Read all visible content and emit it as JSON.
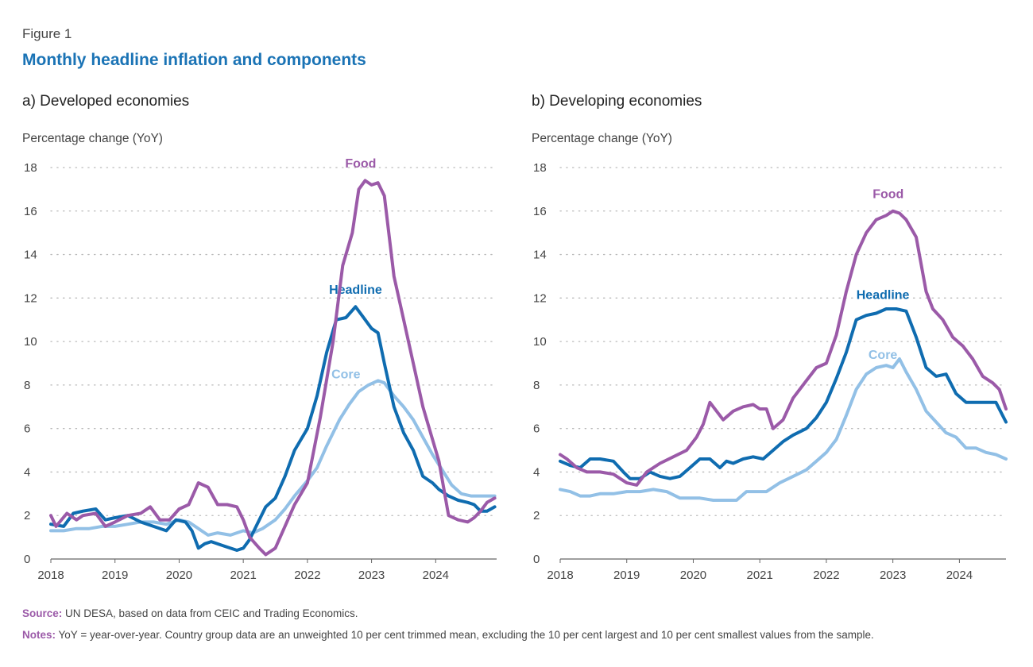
{
  "figure": {
    "label": "Figure 1",
    "title": "Monthly headline inflation and components",
    "source_label": "Source:",
    "source_text": "UN DESA, based on data from CEIC and Trading Economics.",
    "notes_label": "Notes:",
    "notes_text": "YoY = year-over-year. Country group data are an unweighted 10 per cent trimmed mean, excluding the 10 per cent largest and 10 per cent smallest values from the sample."
  },
  "colors": {
    "food": "#9b5aa8",
    "headline": "#0f6cb0",
    "core": "#92c0e6",
    "grid": "#b9b9b9",
    "title": "#1a73b5"
  },
  "chart_data": [
    {
      "type": "line",
      "panel_title": "a) Developed economies",
      "ylabel": "Percentage change (YoY)",
      "ylim": [
        0,
        18
      ],
      "yticks": [
        0,
        2,
        4,
        6,
        8,
        10,
        12,
        14,
        16,
        18
      ],
      "xlim": [
        2018,
        2024.95
      ],
      "xticks": [
        2018,
        2019,
        2020,
        2021,
        2022,
        2023,
        2024
      ],
      "grid": "horizontal dotted",
      "series": [
        {
          "name": "Food",
          "key": "food",
          "label_at": [
            2022.83,
            18.0
          ],
          "x": [
            2018.0,
            2018.08,
            2018.25,
            2018.4,
            2018.5,
            2018.7,
            2018.85,
            2019.0,
            2019.2,
            2019.4,
            2019.55,
            2019.7,
            2019.85,
            2020.0,
            2020.15,
            2020.3,
            2020.45,
            2020.6,
            2020.75,
            2020.9,
            2021.0,
            2021.1,
            2021.25,
            2021.35,
            2021.5,
            2021.65,
            2021.8,
            2022.0,
            2022.2,
            2022.4,
            2022.55,
            2022.7,
            2022.8,
            2022.9,
            2023.0,
            2023.1,
            2023.2,
            2023.35,
            2023.5,
            2023.65,
            2023.8,
            2023.95,
            2024.05,
            2024.2,
            2024.35,
            2024.5,
            2024.6,
            2024.7,
            2024.8,
            2024.92
          ],
          "y": [
            2.0,
            1.5,
            2.1,
            1.8,
            2.0,
            2.1,
            1.5,
            1.7,
            2.0,
            2.1,
            2.4,
            1.8,
            1.8,
            2.3,
            2.5,
            3.5,
            3.3,
            2.5,
            2.5,
            2.4,
            1.8,
            1.0,
            0.5,
            0.2,
            0.5,
            1.5,
            2.5,
            3.5,
            6.5,
            10.0,
            13.5,
            15.0,
            17.0,
            17.4,
            17.2,
            17.3,
            16.7,
            13.0,
            11.0,
            9.0,
            7.0,
            5.5,
            4.5,
            2.0,
            1.8,
            1.7,
            1.9,
            2.2,
            2.6,
            2.8
          ]
        },
        {
          "name": "Headline",
          "key": "headline",
          "label_at": [
            2022.75,
            12.2
          ],
          "x": [
            2018.0,
            2018.2,
            2018.35,
            2018.5,
            2018.7,
            2018.85,
            2019.0,
            2019.2,
            2019.4,
            2019.6,
            2019.8,
            2019.95,
            2020.1,
            2020.2,
            2020.3,
            2020.4,
            2020.5,
            2020.7,
            2020.9,
            2021.0,
            2021.1,
            2021.2,
            2021.35,
            2021.5,
            2021.65,
            2021.8,
            2022.0,
            2022.15,
            2022.3,
            2022.45,
            2022.6,
            2022.75,
            2022.85,
            2023.0,
            2023.1,
            2023.2,
            2023.35,
            2023.5,
            2023.65,
            2023.8,
            2023.95,
            2024.05,
            2024.2,
            2024.35,
            2024.5,
            2024.6,
            2024.7,
            2024.8,
            2024.92
          ],
          "y": [
            1.6,
            1.5,
            2.1,
            2.2,
            2.3,
            1.8,
            1.9,
            2.0,
            1.7,
            1.5,
            1.3,
            1.8,
            1.7,
            1.3,
            0.5,
            0.7,
            0.8,
            0.6,
            0.4,
            0.5,
            0.9,
            1.5,
            2.4,
            2.8,
            3.8,
            5.0,
            6.0,
            7.5,
            9.5,
            11.0,
            11.1,
            11.6,
            11.2,
            10.6,
            10.4,
            9.0,
            7.0,
            5.8,
            5.0,
            3.8,
            3.5,
            3.2,
            2.9,
            2.7,
            2.6,
            2.5,
            2.2,
            2.2,
            2.4
          ]
        },
        {
          "name": "Core",
          "key": "core",
          "label_at": [
            2022.6,
            8.3
          ],
          "x": [
            2018.0,
            2018.2,
            2018.4,
            2018.6,
            2018.8,
            2019.0,
            2019.2,
            2019.4,
            2019.6,
            2019.8,
            2020.0,
            2020.15,
            2020.3,
            2020.45,
            2020.6,
            2020.8,
            2021.0,
            2021.15,
            2021.3,
            2021.5,
            2021.65,
            2021.8,
            2022.0,
            2022.15,
            2022.3,
            2022.5,
            2022.65,
            2022.8,
            2022.95,
            2023.1,
            2023.2,
            2023.35,
            2023.5,
            2023.65,
            2023.8,
            2023.95,
            2024.1,
            2024.25,
            2024.4,
            2024.55,
            2024.7,
            2024.92
          ],
          "y": [
            1.3,
            1.3,
            1.4,
            1.4,
            1.5,
            1.5,
            1.6,
            1.7,
            1.7,
            1.6,
            1.8,
            1.7,
            1.4,
            1.1,
            1.2,
            1.1,
            1.3,
            1.2,
            1.4,
            1.8,
            2.3,
            2.9,
            3.6,
            4.2,
            5.2,
            6.4,
            7.1,
            7.7,
            8.0,
            8.2,
            8.1,
            7.5,
            7.0,
            6.4,
            5.6,
            4.8,
            4.1,
            3.4,
            3.0,
            2.9,
            2.9,
            2.9
          ]
        }
      ]
    },
    {
      "type": "line",
      "panel_title": "b) Developing economies",
      "ylabel": "Percentage change (YoY)",
      "ylim": [
        0,
        18
      ],
      "yticks": [
        0,
        2,
        4,
        6,
        8,
        10,
        12,
        14,
        16,
        18
      ],
      "xlim": [
        2018,
        2024.7
      ],
      "xticks": [
        2018,
        2019,
        2020,
        2021,
        2022,
        2023,
        2024
      ],
      "grid": "horizontal dotted",
      "series": [
        {
          "name": "Food",
          "key": "food",
          "label_at": [
            2022.93,
            16.6
          ],
          "x": [
            2018.0,
            2018.1,
            2018.25,
            2018.4,
            2018.6,
            2018.8,
            2019.0,
            2019.15,
            2019.3,
            2019.5,
            2019.7,
            2019.9,
            2020.05,
            2020.15,
            2020.25,
            2020.35,
            2020.45,
            2020.6,
            2020.75,
            2020.9,
            2021.0,
            2021.1,
            2021.2,
            2021.35,
            2021.5,
            2021.7,
            2021.85,
            2022.0,
            2022.15,
            2022.3,
            2022.45,
            2022.6,
            2022.75,
            2022.9,
            2023.0,
            2023.1,
            2023.2,
            2023.35,
            2023.5,
            2023.6,
            2023.75,
            2023.9,
            2024.05,
            2024.2,
            2024.35,
            2024.5,
            2024.6,
            2024.7
          ],
          "y": [
            4.8,
            4.6,
            4.2,
            4.0,
            4.0,
            3.9,
            3.5,
            3.4,
            4.0,
            4.4,
            4.7,
            5.0,
            5.6,
            6.2,
            7.2,
            6.8,
            6.4,
            6.8,
            7.0,
            7.1,
            6.9,
            6.9,
            6.0,
            6.4,
            7.4,
            8.2,
            8.8,
            9.0,
            10.3,
            12.3,
            14.0,
            15.0,
            15.6,
            15.8,
            16.0,
            15.9,
            15.6,
            14.8,
            12.3,
            11.5,
            11.0,
            10.2,
            9.8,
            9.2,
            8.4,
            8.1,
            7.8,
            6.9
          ]
        },
        {
          "name": "Headline",
          "key": "headline",
          "label_at": [
            2022.85,
            11.95
          ],
          "x": [
            2018.0,
            2018.15,
            2018.3,
            2018.45,
            2018.6,
            2018.8,
            2018.95,
            2019.05,
            2019.2,
            2019.35,
            2019.5,
            2019.65,
            2019.8,
            2019.95,
            2020.1,
            2020.25,
            2020.4,
            2020.5,
            2020.6,
            2020.75,
            2020.9,
            2021.05,
            2021.2,
            2021.35,
            2021.5,
            2021.7,
            2021.85,
            2022.0,
            2022.15,
            2022.3,
            2022.45,
            2022.6,
            2022.75,
            2022.9,
            2023.05,
            2023.2,
            2023.35,
            2023.5,
            2023.65,
            2023.8,
            2023.95,
            2024.1,
            2024.25,
            2024.4,
            2024.55,
            2024.7
          ],
          "y": [
            4.5,
            4.3,
            4.2,
            4.6,
            4.6,
            4.5,
            4.0,
            3.7,
            3.7,
            4.0,
            3.8,
            3.7,
            3.8,
            4.2,
            4.6,
            4.6,
            4.2,
            4.5,
            4.4,
            4.6,
            4.7,
            4.6,
            5.0,
            5.4,
            5.7,
            6.0,
            6.5,
            7.2,
            8.3,
            9.5,
            11.0,
            11.2,
            11.3,
            11.5,
            11.5,
            11.4,
            10.2,
            8.8,
            8.4,
            8.5,
            7.6,
            7.2,
            7.2,
            7.2,
            7.2,
            6.3
          ]
        },
        {
          "name": "Core",
          "key": "core",
          "label_at": [
            2022.85,
            9.2
          ],
          "x": [
            2018.0,
            2018.15,
            2018.3,
            2018.45,
            2018.6,
            2018.8,
            2019.0,
            2019.2,
            2019.4,
            2019.6,
            2019.8,
            2019.95,
            2020.1,
            2020.3,
            2020.5,
            2020.65,
            2020.8,
            2020.95,
            2021.1,
            2021.3,
            2021.5,
            2021.7,
            2021.85,
            2022.0,
            2022.15,
            2022.3,
            2022.45,
            2022.6,
            2022.75,
            2022.9,
            2023.0,
            2023.1,
            2023.2,
            2023.35,
            2023.5,
            2023.65,
            2023.8,
            2023.95,
            2024.1,
            2024.25,
            2024.4,
            2024.55,
            2024.7
          ],
          "y": [
            3.2,
            3.1,
            2.9,
            2.9,
            3.0,
            3.0,
            3.1,
            3.1,
            3.2,
            3.1,
            2.8,
            2.8,
            2.8,
            2.7,
            2.7,
            2.7,
            3.1,
            3.1,
            3.1,
            3.5,
            3.8,
            4.1,
            4.5,
            4.9,
            5.5,
            6.6,
            7.8,
            8.5,
            8.8,
            8.9,
            8.8,
            9.2,
            8.6,
            7.8,
            6.8,
            6.3,
            5.8,
            5.6,
            5.1,
            5.1,
            4.9,
            4.8,
            4.6
          ]
        }
      ]
    }
  ]
}
